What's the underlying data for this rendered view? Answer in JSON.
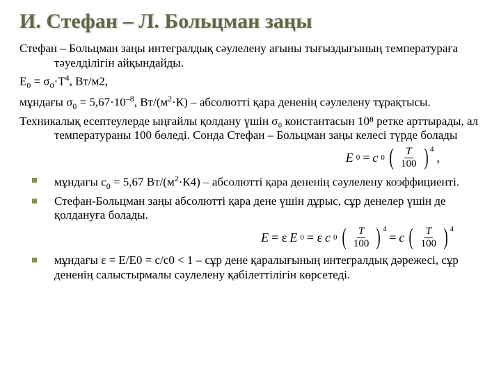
{
  "colors": {
    "title_color": "#5f6a46",
    "bullet_color": "#81914f",
    "text_color": "#000000",
    "background_color": "#ffffff"
  },
  "typography": {
    "title_fontsize": 30,
    "body_fontsize": 17,
    "formula_fontsize": 18,
    "font_family": "Times New Roman"
  },
  "title": "И. Стефан – Л. Больцман заңы",
  "p1": "Стефан – Больцман заңы интегралдық сәулелену ағыны тығыздығының температураға тәуелділігін айқындайды.",
  "eq1_text": "Е",
  "eq1_sub": "0",
  "eq1_rest": " = σ",
  "eq1_rest2": "·T",
  "eq1_sup": "4",
  "eq1_tail": ", Вт/м2,",
  "p2_a": "мұндағы σ",
  "p2_b": " = 5,67·10",
  "p2_exp": "–8",
  "p2_c": ", Вт/(м",
  "p2_c2": "·К) – абсолютті қара дененің сәулелену тұрақтысы.",
  "p3": "Техникалық есептеулерде ыңғайлы қолдану үшін σ₀ константасын 10⁸ ретке арттырады, ал температураны 100 бөледі. Сонда Стефан – Больцман заңы келесі түрде болады",
  "formula1": {
    "lhs_sym": "E",
    "lhs_sub": "0",
    "eq": " = ",
    "c_sym": "c",
    "c_sub": "0",
    "frac_num": "T",
    "frac_den": "100",
    "power": "4",
    "tail": ","
  },
  "b1_a": "мұндағы с",
  "b1_b": " = 5,67 Вт/(м",
  "b1_c": "·К4) – абсолютті қара дененің сәулелену коэффициенті.",
  "b2": "Стефан-Больцман заңы абсолютті қара дене үшін дұрыс, сұр денелер үшін де қолдануға болады.",
  "formula2": {
    "E": "E",
    "eq1": " = ε",
    "E0": "E",
    "E0sub": "0",
    "eq2": " = ε",
    "c0": "c",
    "c0sub": "0",
    "num": "T",
    "den": "100",
    "pow": "4",
    "eq3": " = ",
    "c": "c"
  },
  "b3": "мұндағы ε = Е/Е0 = с/с0 < 1 – сұр дене қаралығының интегралдық дәрежесі, сұр дененің салыстырмалы сәулелену қабілеттілігін көрсетеді."
}
